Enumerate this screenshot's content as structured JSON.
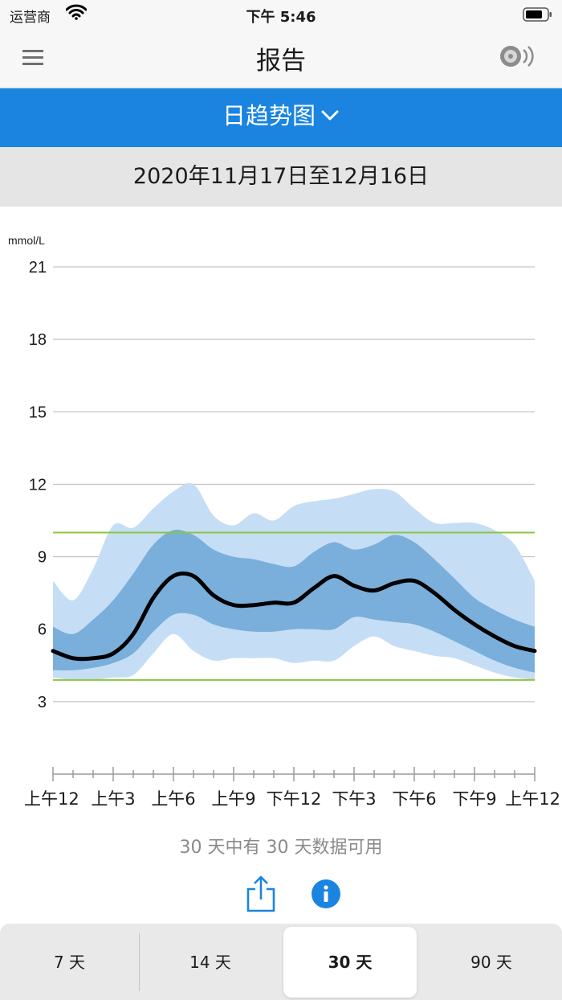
{
  "status_bar": {
    "carrier": "运营商",
    "time": "下午 5:46"
  },
  "nav": {
    "title": "报告"
  },
  "report_selector": {
    "label": "日趋势图"
  },
  "date_range": "2020年11月17日至12月16日",
  "chart_data": {
    "type": "area",
    "unit_label": "mmol/L",
    "y_ticks": [
      "21",
      "18",
      "15",
      "12",
      "9",
      "6",
      "3"
    ],
    "y_range": [
      0,
      21
    ],
    "x_ticks": [
      "上午12",
      "上午3",
      "上午6",
      "上午9",
      "下午12",
      "下午3",
      "下午6",
      "下午9",
      "上午12"
    ],
    "x_range_hours": [
      0,
      24
    ],
    "target_range": [
      3.9,
      10.0
    ],
    "target_color": "#8cc63f",
    "x_hours": [
      0,
      1,
      2,
      3,
      4,
      5,
      6,
      7,
      8,
      9,
      10,
      11,
      12,
      13,
      14,
      15,
      16,
      17,
      18,
      19,
      20,
      21,
      22,
      23,
      24
    ],
    "series": [
      {
        "name": "median",
        "color": "#000000",
        "values": [
          5.1,
          4.8,
          4.8,
          5.0,
          5.8,
          7.3,
          8.2,
          8.2,
          7.4,
          7.0,
          7.0,
          7.1,
          7.1,
          7.7,
          8.2,
          7.8,
          7.6,
          7.9,
          8.0,
          7.5,
          6.8,
          6.2,
          5.7,
          5.3,
          5.1
        ]
      },
      {
        "name": "p25",
        "color": "#7aaedb",
        "values": [
          4.3,
          4.3,
          4.4,
          4.6,
          5.0,
          5.9,
          6.6,
          6.6,
          6.2,
          6.0,
          5.9,
          5.9,
          6.0,
          6.0,
          6.0,
          6.5,
          6.4,
          6.3,
          6.2,
          5.9,
          5.5,
          5.1,
          4.7,
          4.4,
          4.2
        ]
      },
      {
        "name": "p75",
        "color": "#7aaedb",
        "values": [
          6.1,
          5.8,
          6.4,
          7.2,
          8.3,
          9.5,
          10.1,
          9.9,
          9.3,
          9.0,
          8.9,
          8.7,
          8.6,
          9.2,
          9.6,
          9.3,
          9.5,
          9.9,
          9.6,
          8.9,
          8.1,
          7.3,
          6.8,
          6.4,
          6.1
        ]
      },
      {
        "name": "p10",
        "color": "#c5def5",
        "values": [
          4.0,
          3.9,
          3.9,
          4.0,
          4.1,
          5.0,
          5.8,
          5.1,
          4.7,
          4.8,
          4.8,
          4.8,
          4.6,
          4.7,
          4.7,
          5.3,
          5.7,
          5.3,
          5.1,
          4.9,
          4.8,
          4.5,
          4.2,
          4.0,
          3.9
        ]
      },
      {
        "name": "p90",
        "color": "#c5def5",
        "values": [
          8.0,
          7.2,
          8.5,
          10.3,
          10.2,
          11.0,
          11.7,
          12.0,
          10.7,
          10.3,
          10.8,
          10.5,
          11.1,
          11.3,
          11.4,
          11.6,
          11.8,
          11.7,
          11.0,
          10.4,
          10.4,
          10.4,
          10.1,
          9.5,
          8.0
        ]
      }
    ]
  },
  "availability_text": "30 天中有 30 天数据可用",
  "period_tabs": [
    {
      "label": "7 天"
    },
    {
      "label": "14 天"
    },
    {
      "label": "30 天"
    },
    {
      "label": "90 天"
    }
  ],
  "colors": {
    "accent": "#1a84e0",
    "band_outer": "#c5def5",
    "band_inner": "#7aaedb",
    "target_line": "#8cc63f"
  }
}
